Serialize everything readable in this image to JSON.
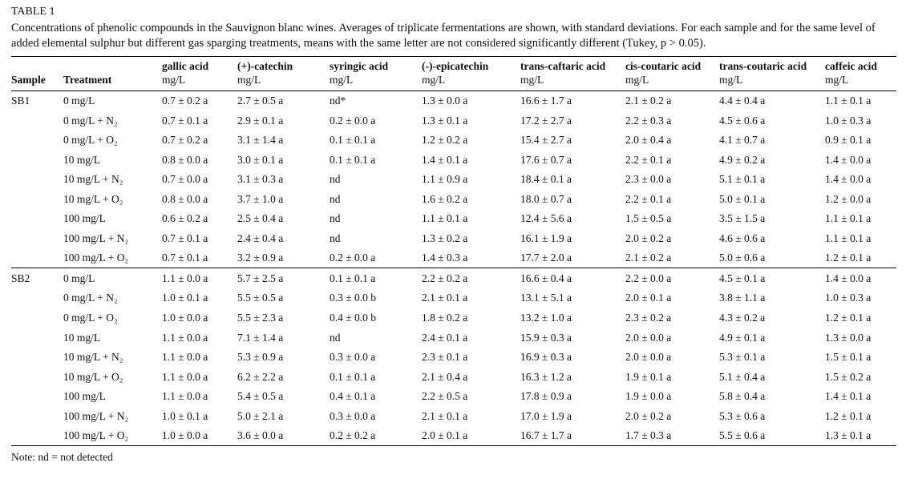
{
  "page": {
    "title": "TABLE 1",
    "caption": "Concentrations of phenolic compounds in the Sauvignon blanc wines. Averages of triplicate fermentations are shown, with standard deviations. For each sample and for the same level of added elemental sulphur but different gas sparging treatments, means with the same letter are not considered significantly different (Tukey, p > 0.05).",
    "note": "Note: nd = not detected"
  },
  "table": {
    "row_headers": [
      "Sample",
      "Treatment"
    ],
    "columns": [
      {
        "name": "gallic acid",
        "unit": "mg/L"
      },
      {
        "name": "(+)-catechin",
        "unit": "mg/L"
      },
      {
        "name": "syringic acid",
        "unit": "mg/L"
      },
      {
        "name": "(-)-epicatechin",
        "unit": "mg/L"
      },
      {
        "name": "trans-caftaric acid",
        "unit": "mg/L"
      },
      {
        "name": "cis-coutaric acid",
        "unit": "mg/L"
      },
      {
        "name": "trans-coutaric acid",
        "unit": "mg/L"
      },
      {
        "name": "caffeic acid",
        "unit": "mg/L"
      }
    ],
    "groups": [
      {
        "sample": "SB1",
        "rows": [
          {
            "treatment": "0 mg/L",
            "values": [
              "0.7 ± 0.2 a",
              "2.7 ± 0.5 a",
              "nd*",
              "1.3 ± 0.0 a",
              "16.6 ± 1.7 a",
              "2.1 ± 0.2 a",
              "4.4 ± 0.4 a",
              "1.1 ± 0.1 a"
            ]
          },
          {
            "treatment": "0 mg/L + N₂",
            "values": [
              "0.7 ± 0.1 a",
              "2.9 ± 0.1 a",
              "0.2 ± 0.0 a",
              "1.3 ± 0.1 a",
              "17.2 ± 2.7 a",
              "2.2 ± 0.3 a",
              "4.5 ± 0.6 a",
              "1.0 ± 0.3 a"
            ]
          },
          {
            "treatment": "0 mg/L + O₂",
            "values": [
              "0.7 ± 0.2 a",
              "3.1 ± 1.4 a",
              "0.1 ± 0.1 a",
              "1.2 ± 0.2 a",
              "15.4 ± 2.7 a",
              "2.0 ± 0.4 a",
              "4.1 ± 0.7 a",
              "0.9 ± 0.1 a"
            ]
          },
          {
            "treatment": "10 mg/L",
            "values": [
              "0.8 ± 0.0 a",
              "3.0 ± 0.1 a",
              "0.1 ± 0.1 a",
              "1.4 ± 0.1 a",
              "17.6 ± 0.7 a",
              "2.2 ± 0.1 a",
              "4.9 ± 0.2 a",
              "1.4 ± 0.0 a"
            ]
          },
          {
            "treatment": "10 mg/L + N₂",
            "values": [
              "0.7 ± 0.0 a",
              "3.1 ± 0.3 a",
              "nd",
              "1.1 ± 0.9 a",
              "18.4 ± 0.1 a",
              "2.3 ± 0.0 a",
              "5.1 ± 0.1 a",
              "1.4 ± 0.0 a"
            ]
          },
          {
            "treatment": "10 mg/L + O₂",
            "values": [
              "0.8 ± 0.0 a",
              "3.7 ± 1.0 a",
              "nd",
              "1.6 ± 0.2 a",
              "18.0 ± 0.7 a",
              "2.2 ± 0.1 a",
              "5.0 ± 0.1 a",
              "1.2 ± 0.0 a"
            ]
          },
          {
            "treatment": "100 mg/L",
            "values": [
              "0.6 ± 0.2 a",
              "2.5 ± 0.4 a",
              "nd",
              "1.1 ± 0.1 a",
              "12.4 ± 5.6 a",
              "1.5 ± 0.5 a",
              "3.5 ± 1.5 a",
              "1.1 ± 0.1 a"
            ]
          },
          {
            "treatment": "100 mg/L + N₂",
            "values": [
              "0.7 ± 0.1 a",
              "2.4 ± 0.4 a",
              "nd",
              "1.3 ± 0.2 a",
              "16.1 ± 1.9 a",
              "2.0 ± 0.2 a",
              "4.6 ± 0.6 a",
              "1.1 ± 0.1 a"
            ]
          },
          {
            "treatment": "100 mg/L + O₂",
            "values": [
              "0.7 ± 0.1 a",
              "3.2 ± 0.9 a",
              "0.2 ± 0.0 a",
              "1.4 ± 0.3 a",
              "17.7 ± 2.0 a",
              "2.1 ± 0.2 a",
              "5.0 ± 0.6 a",
              "1.2 ± 0.1 a"
            ]
          }
        ]
      },
      {
        "sample": "SB2",
        "rows": [
          {
            "treatment": "0 mg/L",
            "values": [
              "1.1 ± 0.0 a",
              "5.7 ± 2.5 a",
              "0.1 ± 0.1 a",
              "2.2 ± 0.2 a",
              "16.6 ± 0.4 a",
              "2.2 ± 0.0 a",
              "4.5 ± 0.1 a",
              "1.4 ± 0.0 a"
            ]
          },
          {
            "treatment": "0 mg/L + N₂",
            "values": [
              "1.0 ± 0.1 a",
              "5.5 ± 0.5 a",
              "0.3 ± 0.0 b",
              "2.1 ± 0.1 a",
              "13.1 ± 5.1 a",
              "2.0 ± 0.1 a",
              "3.8 ± 1.1 a",
              "1.0 ± 0.3 a"
            ]
          },
          {
            "treatment": "0 mg/L + O₂",
            "values": [
              "1.0 ± 0.0 a",
              "5.5 ± 2.3 a",
              "0.4 ± 0.0 b",
              "1.8 ± 0.2 a",
              "13.2 ± 1.0 a",
              "2.3 ± 0.2 a",
              "4.3 ± 0.2 a",
              "1.2 ± 0.1 a"
            ]
          },
          {
            "treatment": "10 mg/L",
            "values": [
              "1.1 ± 0.0 a",
              "7.1 ± 1.4 a",
              "nd",
              "2.4 ± 0.1 a",
              "15.9 ± 0.3 a",
              "2.0 ± 0.0 a",
              "4.9 ± 0.1 a",
              "1.3 ± 0.0 a"
            ]
          },
          {
            "treatment": "10 mg/L + N₂",
            "values": [
              "1.1 ± 0.0 a",
              "5.3 ± 0.9 a",
              "0.3 ± 0.0 a",
              "2.3 ± 0.1 a",
              "16.9 ± 0.3 a",
              "2.0 ± 0.0 a",
              "5.3 ± 0.1 a",
              "1.5 ± 0.1 a"
            ]
          },
          {
            "treatment": "10 mg/L + O₂",
            "values": [
              "1.1 ± 0.0 a",
              "6.2 ± 2.2 a",
              "0.1 ± 0.1 a",
              "2.1 ± 0.4 a",
              "16.3 ± 1.2 a",
              "1.9 ± 0.1 a",
              "5.1 ± 0.4 a",
              "1.5 ± 0.2 a"
            ]
          },
          {
            "treatment": "100 mg/L",
            "values": [
              "1.1 ± 0.0 a",
              "5.4 ± 0.5 a",
              "0.4 ± 0.1 a",
              "2.2 ± 0.5 a",
              "17.8 ± 0.9 a",
              "1.9 ± 0.0 a",
              "5.8 ± 0.4 a",
              "1.4 ± 0.1 a"
            ]
          },
          {
            "treatment": "100 mg/L + N₂",
            "values": [
              "1.0 ± 0.1 a",
              "5.0 ± 2.1 a",
              "0.3 ± 0.0 a",
              "2.1 ± 0.1 a",
              "17.0 ± 1.9 a",
              "2.0 ± 0.2 a",
              "5.3 ± 0.6 a",
              "1.2 ± 0.1 a"
            ]
          },
          {
            "treatment": "100 mg/L + O₂",
            "values": [
              "1.0 ± 0.0 a",
              "3.6 ± 0.0 a",
              "0.2 ± 0.2 a",
              "2.0 ± 0.1 a",
              "16.7 ± 1.7 a",
              "1.7 ± 0.3 a",
              "5.5 ± 0.6 a",
              "1.3 ± 0.1 a"
            ]
          }
        ]
      }
    ]
  }
}
